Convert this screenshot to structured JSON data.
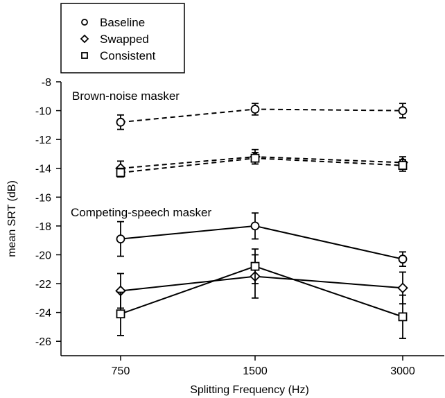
{
  "chart_data": {
    "type": "line",
    "ylabel": "mean SRT (dB)",
    "xlabel": "Splitting Frequency (Hz)",
    "x_categories": [
      "750",
      "1500",
      "3000"
    ],
    "ylim": [
      -27,
      -8
    ],
    "y_ticks": [
      -8,
      -10,
      -12,
      -14,
      -16,
      -18,
      -20,
      -22,
      -24,
      -26
    ],
    "legend": {
      "placement": "top-left, above plot",
      "entries": [
        {
          "label": "Baseline",
          "marker": "circle"
        },
        {
          "label": "Swapped",
          "marker": "diamond"
        },
        {
          "label": "Consistent",
          "marker": "square"
        }
      ]
    },
    "panels": [
      {
        "label": "Brown-noise masker",
        "line_style": "dashed",
        "series": [
          {
            "condition": "Baseline",
            "marker": "circle",
            "values": [
              -10.8,
              -9.9,
              -10.0
            ],
            "errors": [
              0.5,
              0.4,
              0.5
            ]
          },
          {
            "condition": "Swapped",
            "marker": "diamond",
            "values": [
              -14.0,
              -13.2,
              -13.6
            ],
            "errors": [
              0.5,
              0.5,
              0.4
            ]
          },
          {
            "condition": "Consistent",
            "marker": "square",
            "values": [
              -14.3,
              -13.3,
              -13.8
            ],
            "errors": [
              0.3,
              0.4,
              0.4
            ]
          }
        ]
      },
      {
        "label": "Competing-speech masker",
        "line_style": "solid",
        "series": [
          {
            "condition": "Baseline",
            "marker": "circle",
            "values": [
              -18.9,
              -18.0,
              -20.3
            ],
            "errors": [
              1.2,
              0.9,
              0.5
            ]
          },
          {
            "condition": "Swapped",
            "marker": "diamond",
            "values": [
              -22.5,
              -21.5,
              -22.3
            ],
            "errors": [
              1.2,
              1.5,
              1.1
            ]
          },
          {
            "condition": "Consistent",
            "marker": "square",
            "values": [
              -24.1,
              -20.8,
              -24.3
            ],
            "errors": [
              1.5,
              1.2,
              1.5
            ]
          }
        ]
      }
    ]
  }
}
